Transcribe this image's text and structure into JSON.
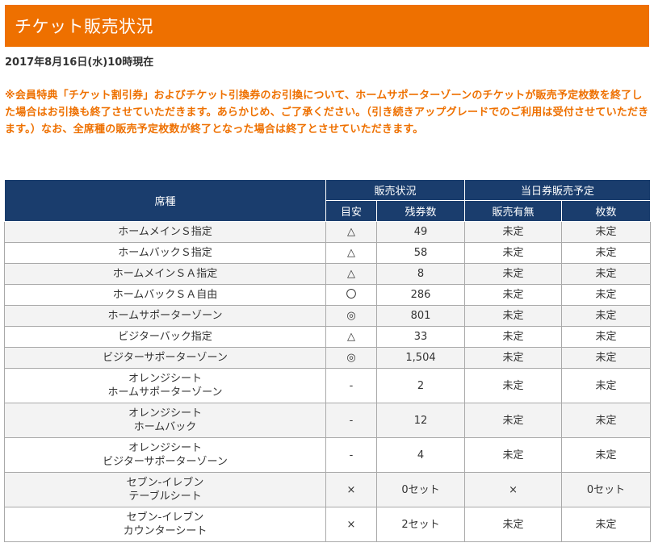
{
  "header": {
    "title": "チケット販売状況"
  },
  "date_text": "2017年8月16日(水)10時現在",
  "notice": "※会員特典「チケット割引券」およびチケット引換券のお引換について、ホームサポーターゾーンのチケットが販売予定枚数を終了した場合はお引換も終了させていただきます。あらかじめ、ご了承ください。（引き続きアップグレードでのご利用は受付させていただきます。）なお、全席種の販売予定枚数が終了となった場合は終了とさせていただきます。",
  "table": {
    "headers": {
      "seat": "席種",
      "sales_status": "販売状況",
      "today": "当日券販売予定",
      "guide": "目安",
      "remaining": "残券数",
      "availability": "販売有無",
      "count": "枚数"
    },
    "rows": [
      {
        "seat": [
          "ホームメインＳ指定"
        ],
        "guide": "△",
        "remaining": "49",
        "availability": "未定",
        "count": "未定"
      },
      {
        "seat": [
          "ホームバックＳ指定"
        ],
        "guide": "△",
        "remaining": "58",
        "availability": "未定",
        "count": "未定"
      },
      {
        "seat": [
          "ホームメインＳＡ指定"
        ],
        "guide": "△",
        "remaining": "8",
        "availability": "未定",
        "count": "未定"
      },
      {
        "seat": [
          "ホームバックＳＡ自由"
        ],
        "guide": "〇",
        "remaining": "286",
        "availability": "未定",
        "count": "未定"
      },
      {
        "seat": [
          "ホームサポーターゾーン"
        ],
        "guide": "◎",
        "remaining": "801",
        "availability": "未定",
        "count": "未定"
      },
      {
        "seat": [
          "ビジターバック指定"
        ],
        "guide": "△",
        "remaining": "33",
        "availability": "未定",
        "count": "未定"
      },
      {
        "seat": [
          "ビジターサポーターゾーン"
        ],
        "guide": "◎",
        "remaining": "1,504",
        "availability": "未定",
        "count": "未定"
      },
      {
        "seat": [
          "オレンジシート",
          "ホームサポーターゾーン"
        ],
        "guide": "-",
        "remaining": "2",
        "availability": "未定",
        "count": "未定"
      },
      {
        "seat": [
          "オレンジシート",
          "ホームバック"
        ],
        "guide": "-",
        "remaining": "12",
        "availability": "未定",
        "count": "未定"
      },
      {
        "seat": [
          "オレンジシート",
          "ビジターサポーターゾーン"
        ],
        "guide": "-",
        "remaining": "4",
        "availability": "未定",
        "count": "未定"
      },
      {
        "seat": [
          "セブン-イレブン",
          "テーブルシート"
        ],
        "guide": "×",
        "remaining": "0セット",
        "availability": "×",
        "count": "0セット"
      },
      {
        "seat": [
          "セブン-イレブン",
          "カウンターシート"
        ],
        "guide": "×",
        "remaining": "2セット",
        "availability": "未定",
        "count": "未定"
      }
    ]
  },
  "colors": {
    "header_bg": "#ee7000",
    "notice_text": "#ee7000",
    "table_header_bg": "#1a3d6d",
    "row_alt_bg": "#f3f3f3"
  }
}
